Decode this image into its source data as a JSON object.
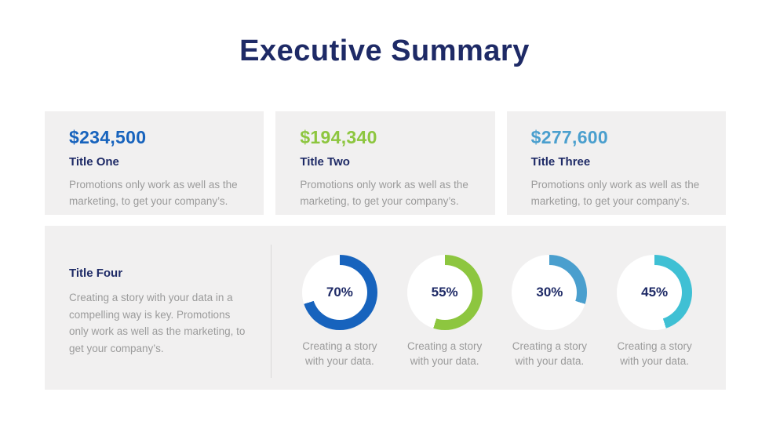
{
  "slide": {
    "title": "Executive Summary"
  },
  "colors": {
    "navy": "#1E2A66",
    "blue": "#1763BD",
    "green": "#8DC63F",
    "sky_blue": "#4A9FCE",
    "teal": "#3FC0D4",
    "panel_bg": "#F1F0F0",
    "text_gray": "#9B9B9B",
    "divider": "#D9D9D9"
  },
  "stat_cards": [
    {
      "value": "$234,500",
      "title": "Title One",
      "description": "Promotions only work as well as the marketing, to get your company’s.",
      "accent_color": "#1763BD"
    },
    {
      "value": "$194,340",
      "title": "Title Two",
      "description": "Promotions only work as well as the marketing, to get your company’s.",
      "accent_color": "#8DC63F"
    },
    {
      "value": "$277,600",
      "title": "Title Three",
      "description": "Promotions only work as well as the marketing, to get your company’s.",
      "accent_color": "#4A9FCE"
    }
  ],
  "summary_panel": {
    "title": "Title Four",
    "description": "Creating a story with your data in a compelling way is key. Promotions only work as well as the marketing, to get your company’s."
  },
  "chart_data": [
    {
      "type": "pie",
      "donut": true,
      "percent": 70,
      "center_label": "70%",
      "color": "#1763BD",
      "track_color": "#FFFFFF",
      "start": "top",
      "direction": "clockwise",
      "caption": "Creating a story with your data."
    },
    {
      "type": "pie",
      "donut": true,
      "percent": 55,
      "center_label": "55%",
      "color": "#8DC63F",
      "track_color": "#FFFFFF",
      "start": "top",
      "direction": "clockwise",
      "caption": "Creating a story with your data."
    },
    {
      "type": "pie",
      "donut": true,
      "percent": 30,
      "center_label": "30%",
      "color": "#4A9FCE",
      "track_color": "#FFFFFF",
      "start": "top",
      "direction": "clockwise",
      "caption": "Creating a story with your data."
    },
    {
      "type": "pie",
      "donut": true,
      "percent": 45,
      "center_label": "45%",
      "color": "#3FC0D4",
      "track_color": "#FFFFFF",
      "start": "top",
      "direction": "clockwise",
      "caption": "Creating a story with your data."
    }
  ]
}
